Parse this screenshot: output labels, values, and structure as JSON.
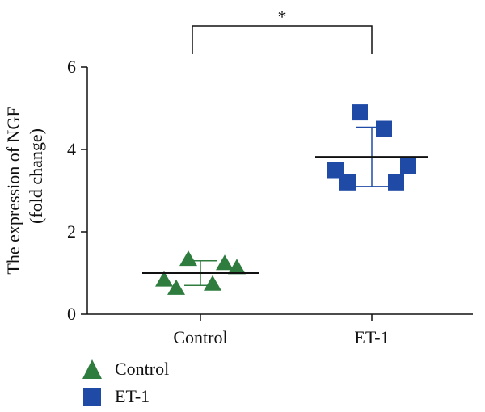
{
  "chart_data": {
    "type": "scatter",
    "ylabel_line1": "The expression of NGF",
    "ylabel_line2": "(fold change)",
    "xlabel": "",
    "ylim": [
      0,
      6
    ],
    "yticks": [
      0,
      2,
      4,
      6
    ],
    "categories": [
      "Control",
      "ET-1"
    ],
    "series": [
      {
        "name": "Control",
        "marker": "triangle",
        "color": "#2e7d3f",
        "mean": 1.0,
        "sd": 0.3,
        "points": [
          {
            "offset": -0.45,
            "y": 0.85
          },
          {
            "offset": -0.3,
            "y": 0.65
          },
          {
            "offset": -0.15,
            "y": 1.35
          },
          {
            "offset": 0.15,
            "y": 0.75
          },
          {
            "offset": 0.3,
            "y": 1.25
          },
          {
            "offset": 0.45,
            "y": 1.15
          }
        ]
      },
      {
        "name": "ET-1",
        "marker": "square",
        "color": "#1f4aa5",
        "mean": 3.82,
        "sd": 0.72,
        "points": [
          {
            "offset": -0.45,
            "y": 3.5
          },
          {
            "offset": -0.3,
            "y": 3.2
          },
          {
            "offset": -0.15,
            "y": 4.9
          },
          {
            "offset": 0.15,
            "y": 4.5
          },
          {
            "offset": 0.3,
            "y": 3.2
          },
          {
            "offset": 0.45,
            "y": 3.6
          }
        ]
      }
    ],
    "significance": {
      "from": "Control",
      "to": "ET-1",
      "label": "*"
    }
  },
  "legend": {
    "items": [
      {
        "label": "Control",
        "marker": "triangle",
        "color": "#2e7d3f"
      },
      {
        "label": "ET-1",
        "marker": "square",
        "color": "#1f4aa5"
      }
    ]
  }
}
